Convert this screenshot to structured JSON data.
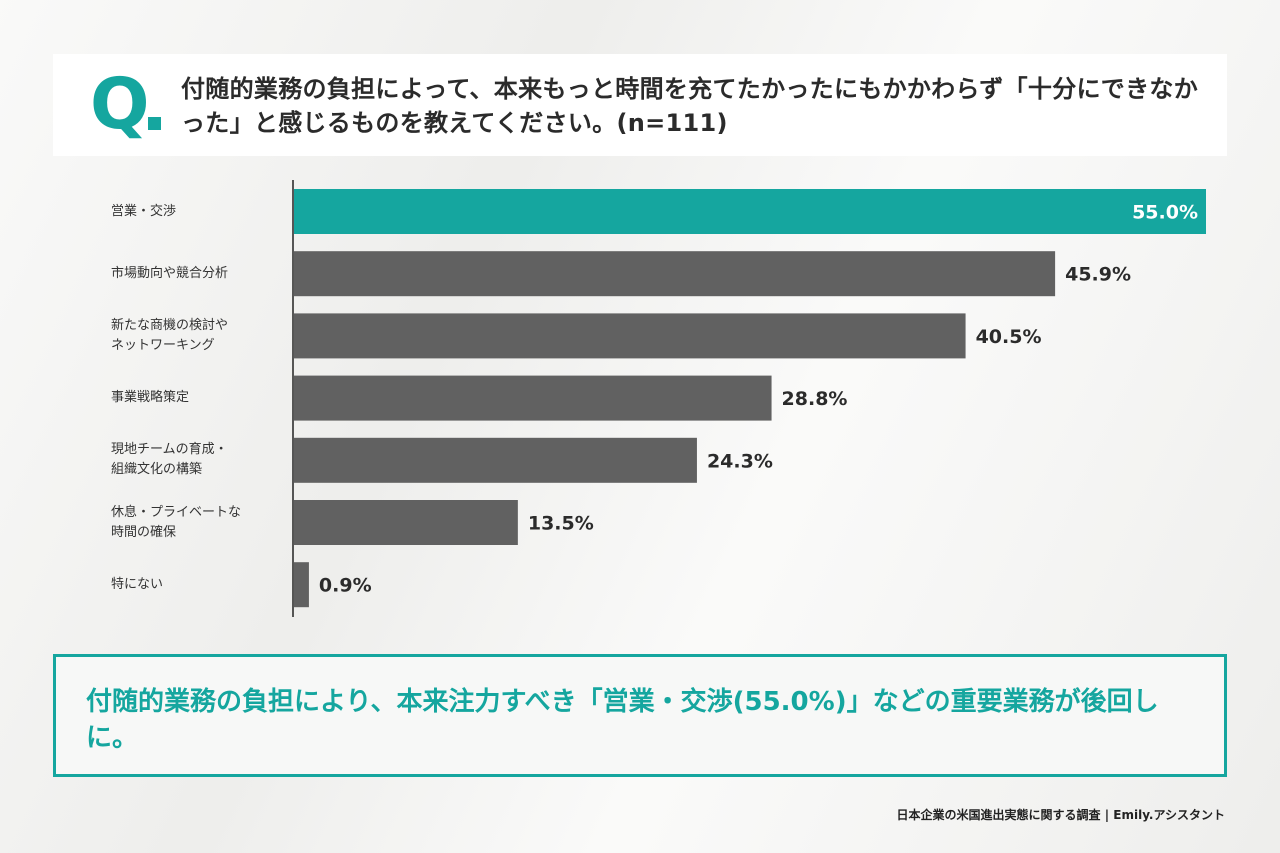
{
  "question": {
    "mark": "Q",
    "text": "付随的業務の負担によって、本来もっと時間を充てたかったにもかかわらず「十分にできなかった」と感じるものを教えてください。(n=111)"
  },
  "chart_data": {
    "type": "bar",
    "orientation": "horizontal",
    "categories": [
      "営業・交渉",
      "市場動向や競合分析",
      "新たな商機の検討やネットワーキング",
      "事業戦略策定",
      "現地チームの育成・組織文化の構築",
      "休息・プライベートな時間の確保",
      "特にない"
    ],
    "category_lines": [
      [
        "営業・交渉"
      ],
      [
        "市場動向や競合分析"
      ],
      [
        "新たな商機の検討や",
        "ネットワーキング"
      ],
      [
        "事業戦略策定"
      ],
      [
        "現地チームの育成・",
        "組織文化の構築"
      ],
      [
        "休息・プライベートな",
        "時間の確保"
      ],
      [
        "特にない"
      ]
    ],
    "values": [
      55.0,
      45.9,
      40.5,
      28.8,
      24.3,
      13.5,
      0.9
    ],
    "value_labels": [
      "55.0%",
      "45.9%",
      "40.5%",
      "28.8%",
      "24.3%",
      "13.5%",
      "0.9%"
    ],
    "xlim": [
      0,
      55.0
    ],
    "highlight_index": 0,
    "colors": {
      "highlight": "#15a69f",
      "default": "#616161",
      "axis": "#222222"
    }
  },
  "answer": {
    "text": "付随的業務の負担により、本来注力すべき「営業・交渉(55.0%)」などの重要業務が後回しに。"
  },
  "footer": {
    "text": "日本企業の米国進出実態に関する調査 | Emily.アシスタント"
  }
}
